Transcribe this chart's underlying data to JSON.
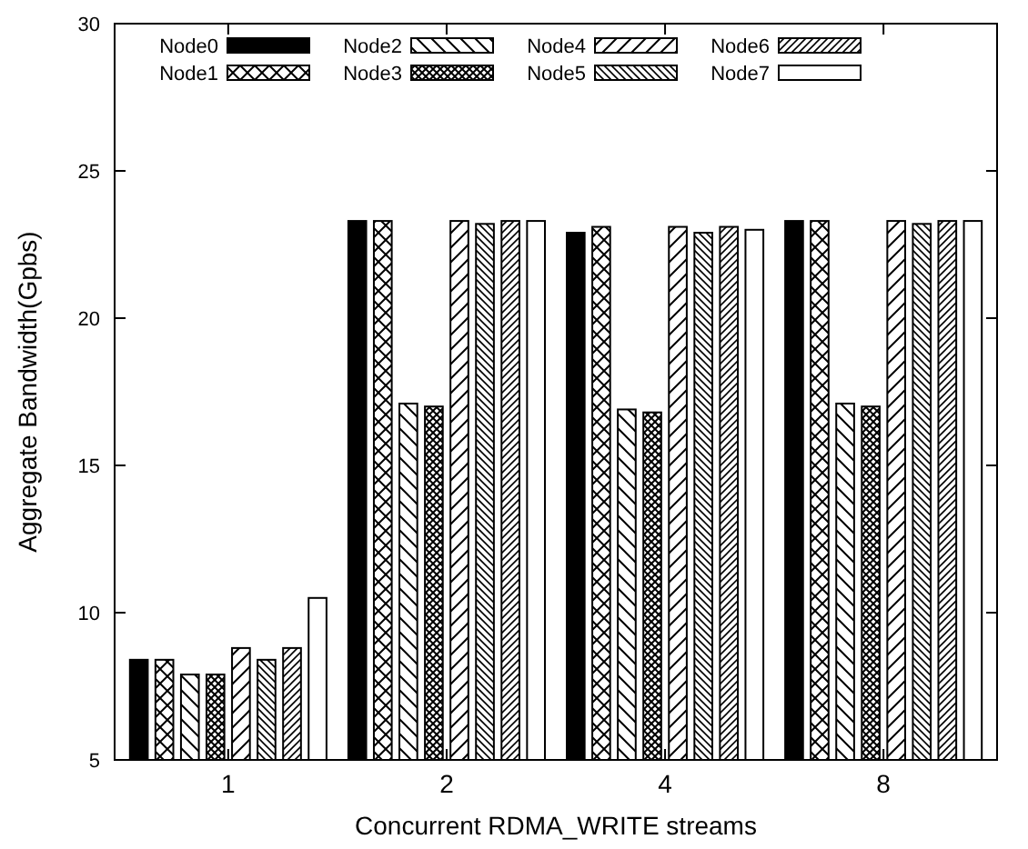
{
  "chart_data": {
    "type": "bar",
    "xlabel": "Concurrent RDMA_WRITE streams",
    "ylabel": "Aggregate Bandwidth(Gpbs)",
    "categories": [
      "1",
      "2",
      "4",
      "8"
    ],
    "ylim": [
      5,
      30
    ],
    "yticks": [
      5,
      10,
      15,
      20,
      25,
      30
    ],
    "legend": "top",
    "grid": false,
    "series": [
      {
        "name": "Node0",
        "color": "#000000",
        "values": [
          8.4,
          23.3,
          22.9,
          23.3
        ]
      },
      {
        "name": "Node1",
        "color": "#ffffff",
        "values": [
          8.4,
          23.3,
          23.1,
          23.3
        ]
      },
      {
        "name": "Node2",
        "color": "#ffffff",
        "values": [
          7.9,
          17.1,
          16.9,
          17.1
        ]
      },
      {
        "name": "Node3",
        "color": "#ffffff",
        "values": [
          7.9,
          17.0,
          16.8,
          17.0
        ]
      },
      {
        "name": "Node4",
        "color": "#ffffff",
        "values": [
          8.8,
          23.3,
          23.1,
          23.3
        ]
      },
      {
        "name": "Node5",
        "color": "#ffffff",
        "values": [
          8.4,
          23.2,
          22.9,
          23.2
        ]
      },
      {
        "name": "Node6",
        "color": "#ffffff",
        "values": [
          8.8,
          23.3,
          23.1,
          23.3
        ]
      },
      {
        "name": "Node7",
        "color": "#ffffff",
        "values": [
          10.5,
          23.3,
          23.0,
          23.3
        ]
      }
    ]
  }
}
